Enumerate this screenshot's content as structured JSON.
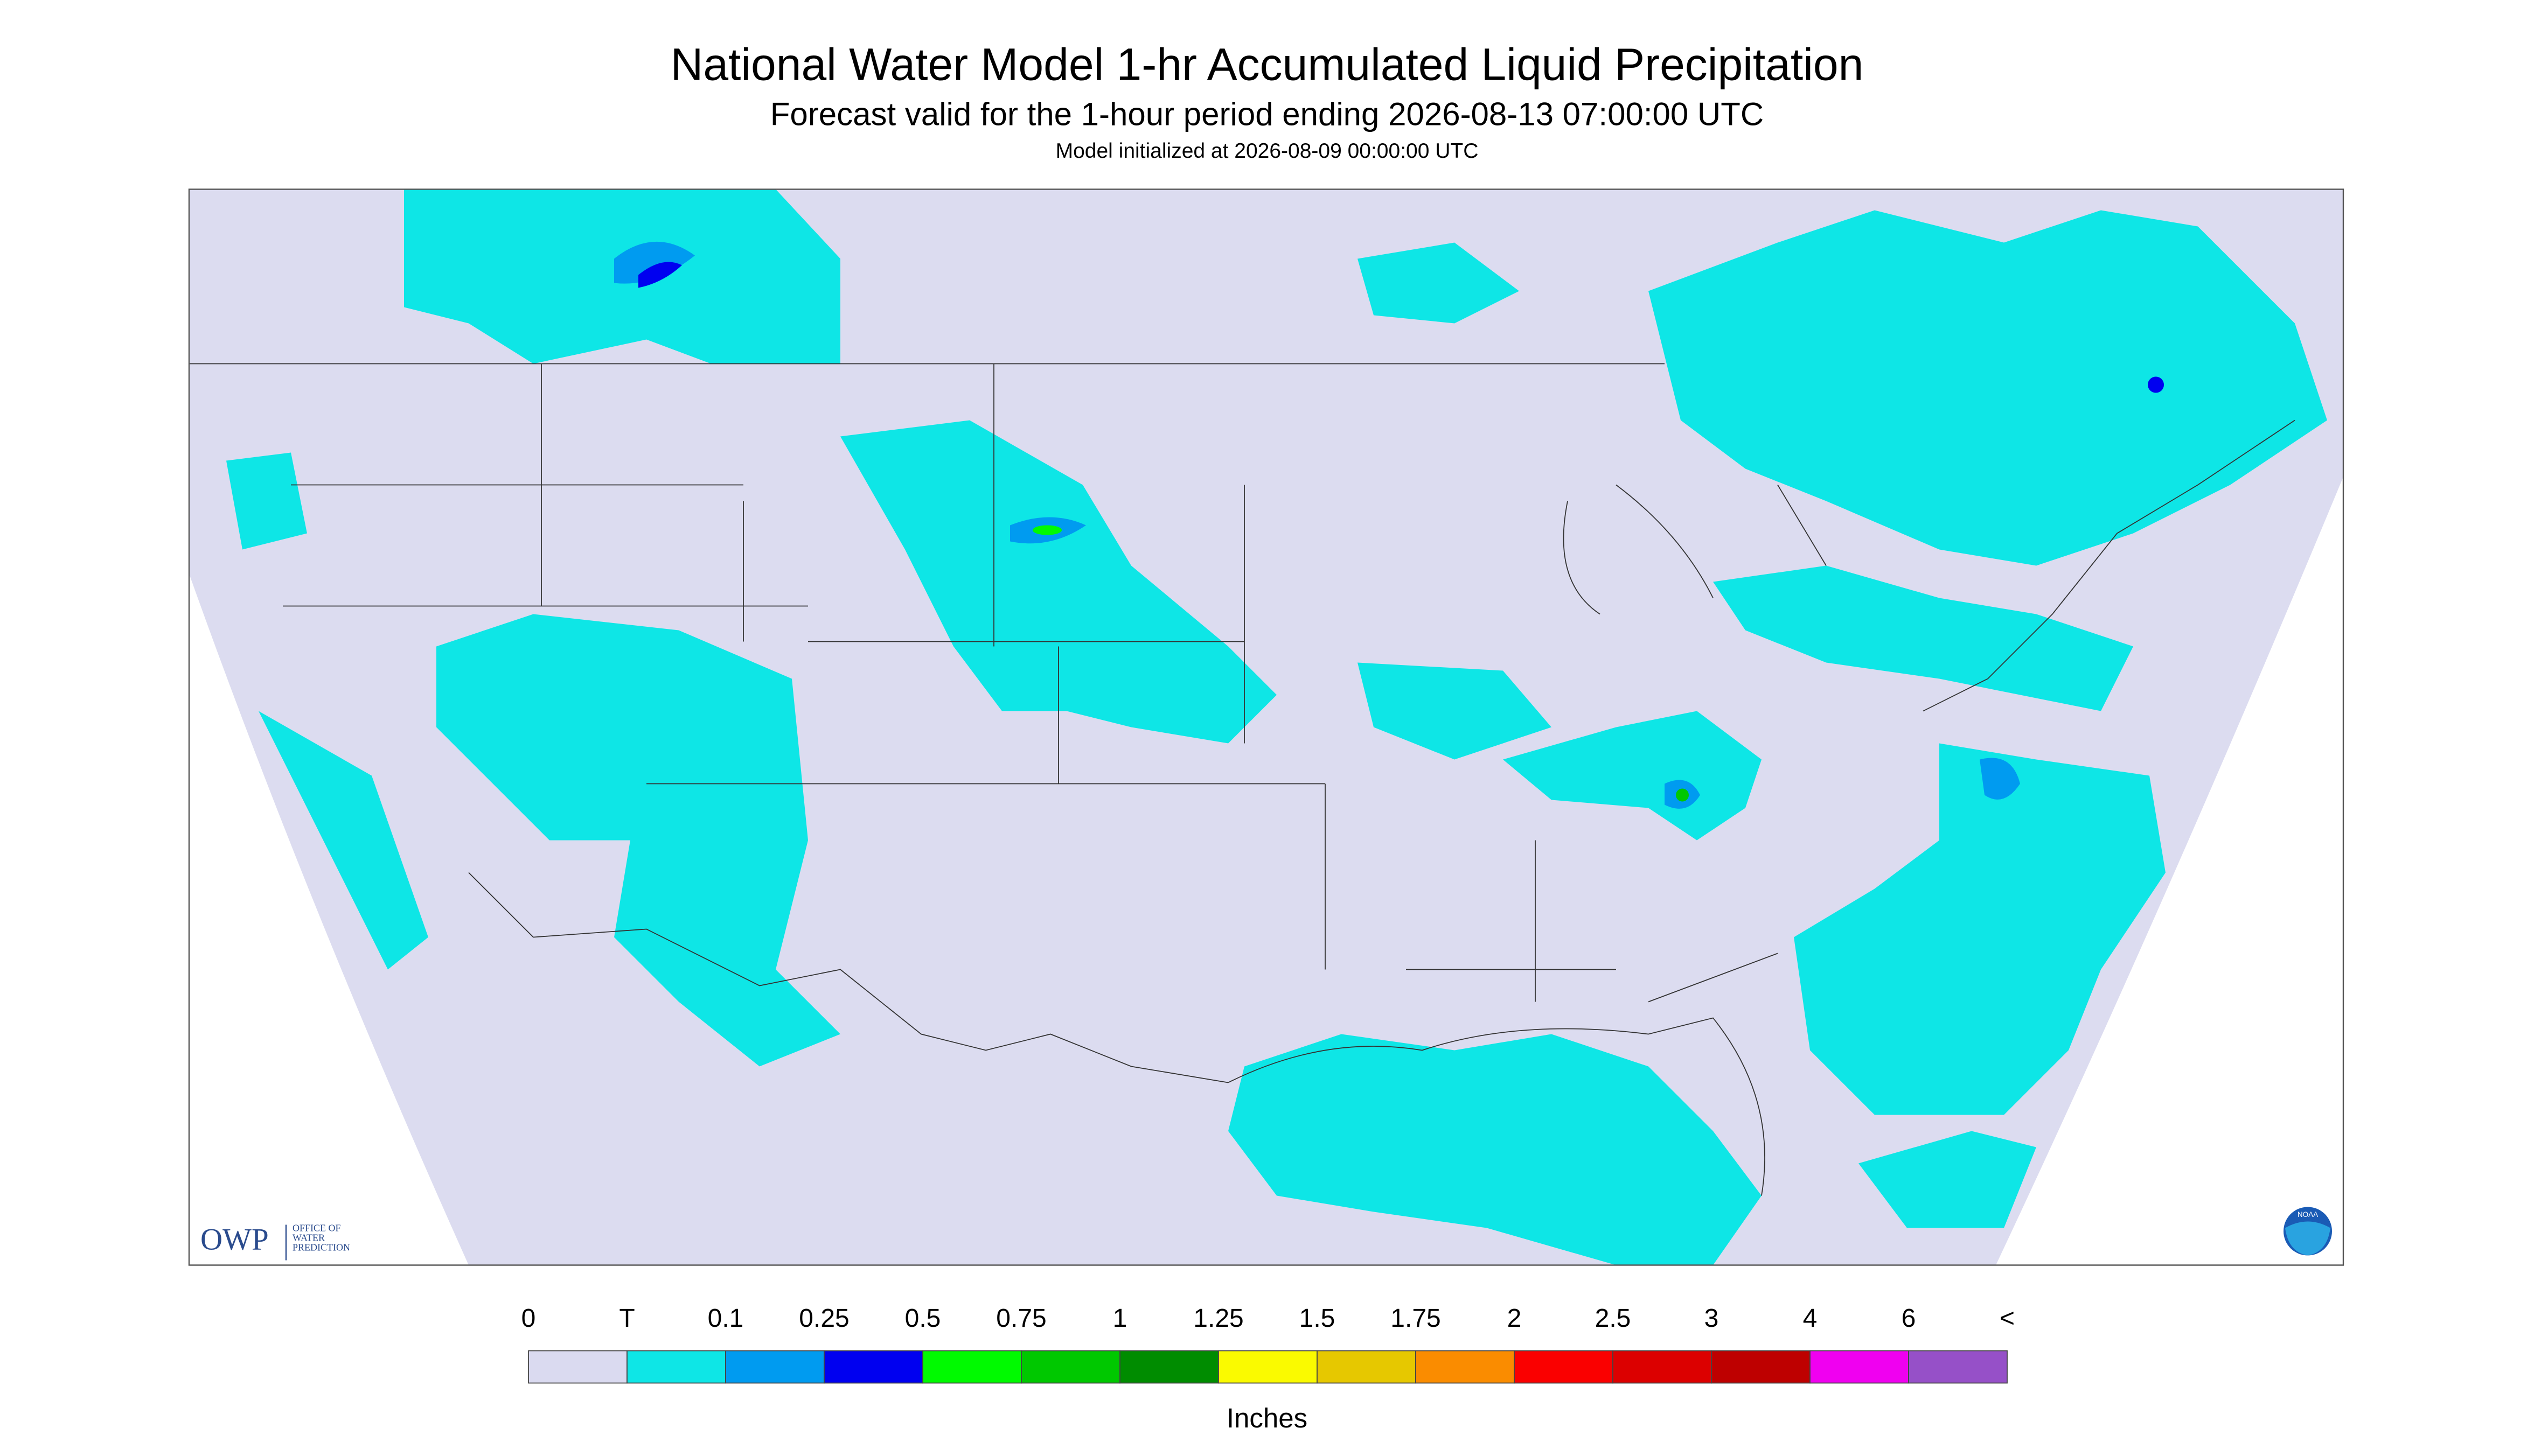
{
  "header": {
    "title": "National Water Model 1-hr Accumulated Liquid Precipitation",
    "subtitle": "Forecast valid for the 1-hour period ending 2026-08-13 07:00:00 UTC",
    "initialized": "Model initialized at 2026-08-09 00:00:00 UTC"
  },
  "legend": {
    "labels": [
      "0",
      "T",
      "0.1",
      "0.25",
      "0.5",
      "0.75",
      "1",
      "1.25",
      "1.5",
      "1.75",
      "2",
      "2.5",
      "3",
      "4",
      "6",
      "<"
    ],
    "colors": [
      "#dadaf0",
      "#0ee6e6",
      "#009bf0",
      "#0000f0",
      "#00fa00",
      "#00c800",
      "#008c00",
      "#fafa00",
      "#e6c800",
      "#fa8c00",
      "#fa0000",
      "#dc0000",
      "#be0000",
      "#f000f0",
      "#9650c8"
    ],
    "unit": "Inches"
  },
  "logos": {
    "owp": "OWP",
    "owp_lines": [
      "OFFICE OF",
      "WATER",
      "PREDICTION"
    ],
    "noaa": "NOAA"
  }
}
